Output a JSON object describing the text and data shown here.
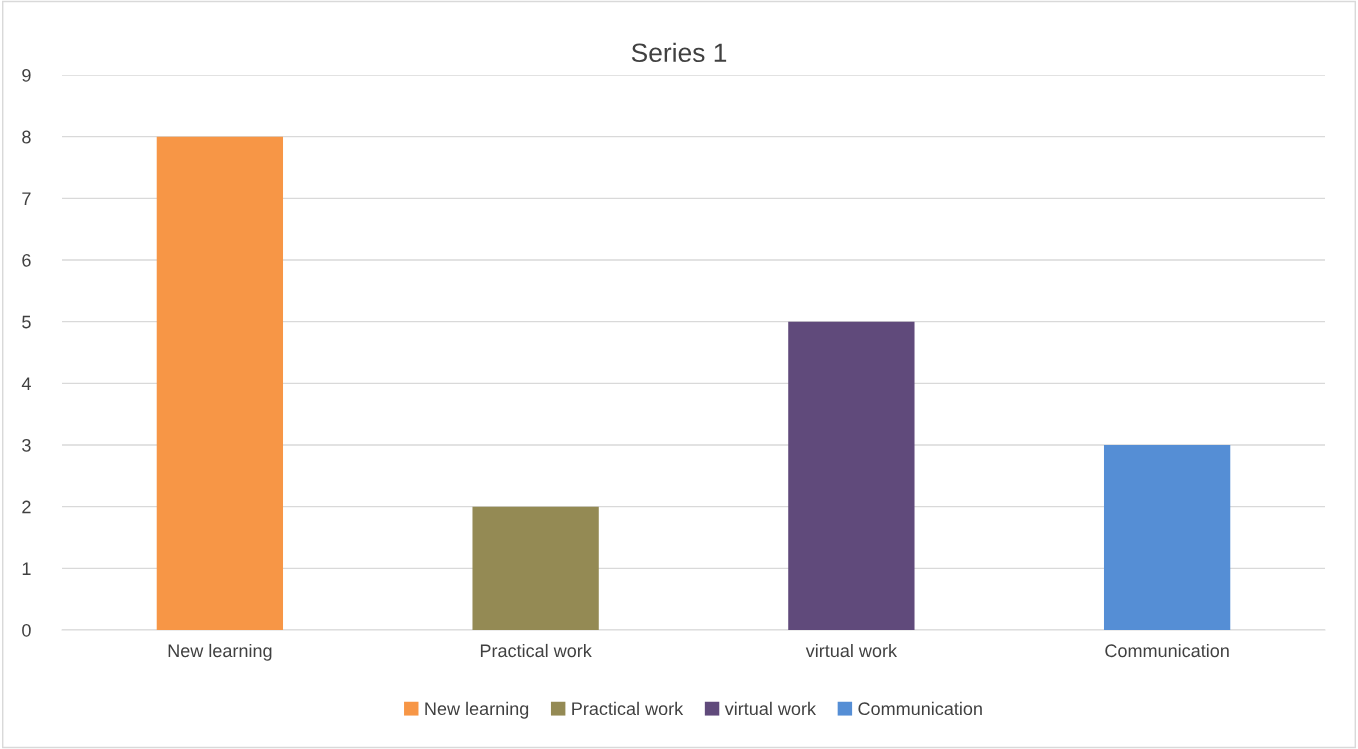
{
  "chart_data": {
    "type": "bar",
    "title": "Series 1",
    "categories": [
      "New learning",
      "Practical work",
      "virtual work",
      "Communication"
    ],
    "series": [
      {
        "name": "New learning",
        "color": "#f79646",
        "values": [
          8,
          null,
          null,
          null
        ]
      },
      {
        "name": "Practical work",
        "color": "#948a54",
        "values": [
          null,
          2,
          null,
          null
        ]
      },
      {
        "name": "virtual work",
        "color": "#604a7b",
        "values": [
          null,
          null,
          5,
          null
        ]
      },
      {
        "name": "Communication",
        "color": "#558ed5",
        "values": [
          null,
          null,
          null,
          3
        ]
      }
    ],
    "ylim": [
      0,
      9
    ],
    "yticks": [
      0,
      1,
      2,
      3,
      4,
      5,
      6,
      7,
      8,
      9
    ],
    "grid": "y",
    "legend": "bottom"
  }
}
